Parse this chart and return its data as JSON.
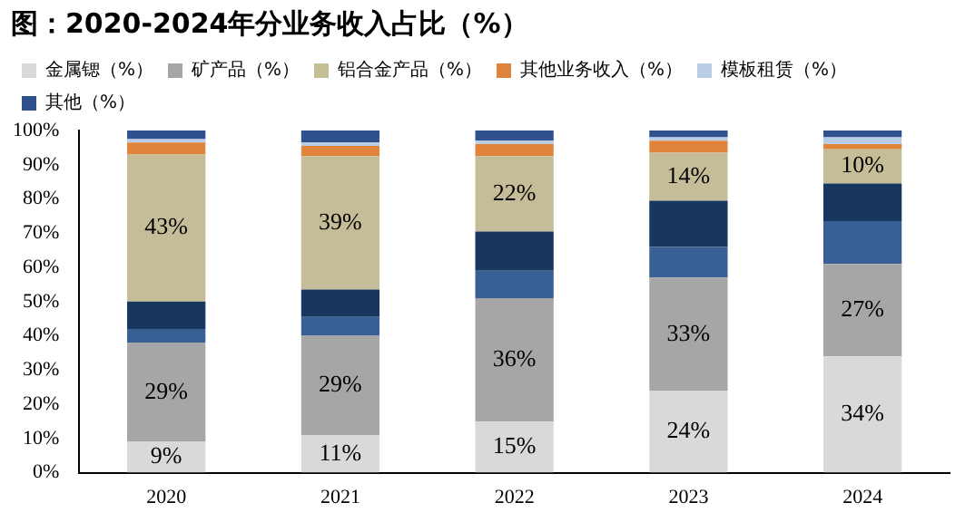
{
  "chart_data": {
    "type": "bar",
    "title": "图：2020-2024年分业务收入占比（%）",
    "categories": [
      "2020",
      "2021",
      "2022",
      "2023",
      "2024"
    ],
    "stacked": true,
    "legend": "top",
    "grid": false,
    "ylim": [
      0,
      100
    ],
    "yticks": [
      {
        "value": 0,
        "label": "0%"
      },
      {
        "value": 10,
        "label": "10%"
      },
      {
        "value": 20,
        "label": "20%"
      },
      {
        "value": 30,
        "label": "30%"
      },
      {
        "value": 40,
        "label": "40%"
      },
      {
        "value": 50,
        "label": "50%"
      },
      {
        "value": 60,
        "label": "60%"
      },
      {
        "value": 70,
        "label": "70%"
      },
      {
        "value": 80,
        "label": "80%"
      },
      {
        "value": 90,
        "label": "90%"
      },
      {
        "value": 100,
        "label": "100%"
      }
    ],
    "series": [
      {
        "name": "金属锶（%）",
        "color": "#d9d9d9",
        "values": [
          9,
          11,
          15,
          24,
          34
        ],
        "value_labels": [
          "9%",
          "11%",
          "15%",
          "24%",
          "34%"
        ]
      },
      {
        "name": "矿产品（%）",
        "color": "#a6a6a6",
        "values": [
          29,
          29,
          36,
          33,
          27
        ],
        "value_labels": [
          "29%",
          "29%",
          "36%",
          "33%",
          "27%"
        ]
      },
      {
        "color": "#386094",
        "values": [
          4,
          5.5,
          8,
          9,
          12.5
        ]
      },
      {
        "color": "#17375e",
        "values": [
          8,
          8,
          11.5,
          13.5,
          11
        ]
      },
      {
        "name": "铝合金产品（%）",
        "color": "#c4bd97",
        "values": [
          43,
          39,
          22,
          14,
          10
        ],
        "value_labels": [
          "43%",
          "39%",
          "22%",
          "14%",
          "10%"
        ]
      },
      {
        "name": "其他业务收入（%）",
        "color": "#e0843c",
        "values": [
          3.5,
          3,
          3.5,
          3.5,
          1.5
        ]
      },
      {
        "name": "模板租赁（%）",
        "color": "#b9cde5",
        "values": [
          1,
          1,
          1,
          1,
          2
        ]
      },
      {
        "name": "其他（%）",
        "color": "#2f528f",
        "values": [
          2.5,
          3.5,
          3,
          2,
          2
        ]
      }
    ]
  }
}
